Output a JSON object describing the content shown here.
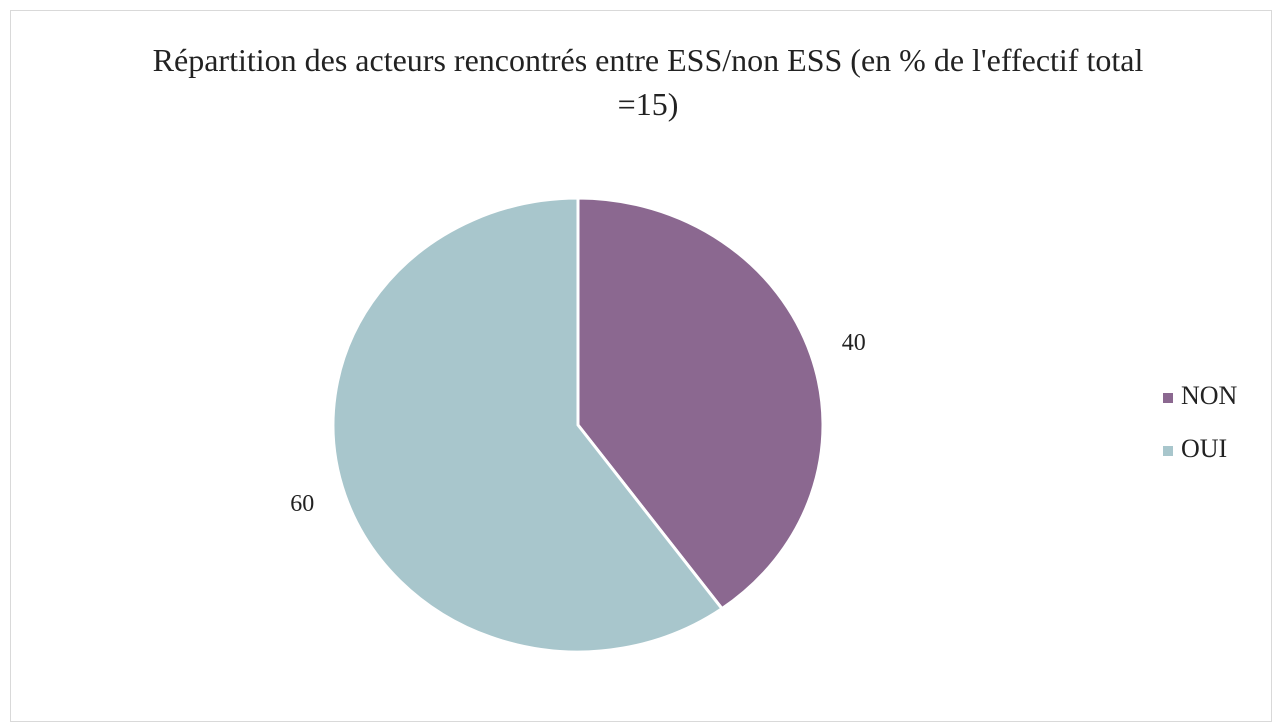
{
  "chart_data": {
    "type": "pie",
    "title": "Répartition des acteurs rencontrés entre ESS/non ESS (en % de l'effectif total =15)",
    "categories": [
      "NON",
      "OUI"
    ],
    "values": [
      40,
      60
    ],
    "colors": [
      "#8b6890",
      "#a8c6cc"
    ],
    "legend": "right"
  }
}
